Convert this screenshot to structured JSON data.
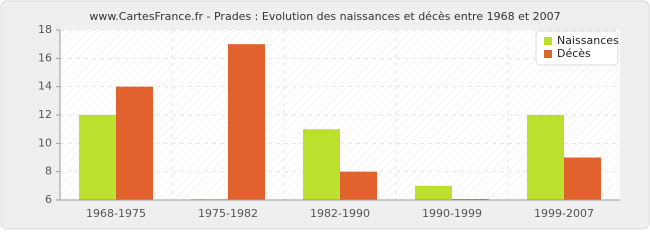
{
  "chart_data": {
    "type": "bar",
    "title": "www.CartesFrance.fr - Prades : Evolution des naissances et décès entre 1968 et 2007",
    "categories": [
      "1968-1975",
      "1975-1982",
      "1982-1990",
      "1990-1999",
      "1999-2007"
    ],
    "series": [
      {
        "name": "Naissances",
        "color": "#bce02e",
        "values": [
          12,
          6,
          11,
          7,
          12
        ]
      },
      {
        "name": "Décès",
        "color": "#e2622d",
        "values": [
          14,
          17,
          8,
          6,
          9
        ]
      }
    ],
    "ylim": [
      6,
      18
    ],
    "yticks": [
      6,
      8,
      10,
      12,
      14,
      16,
      18
    ],
    "grid": true,
    "legend": "top-right"
  }
}
